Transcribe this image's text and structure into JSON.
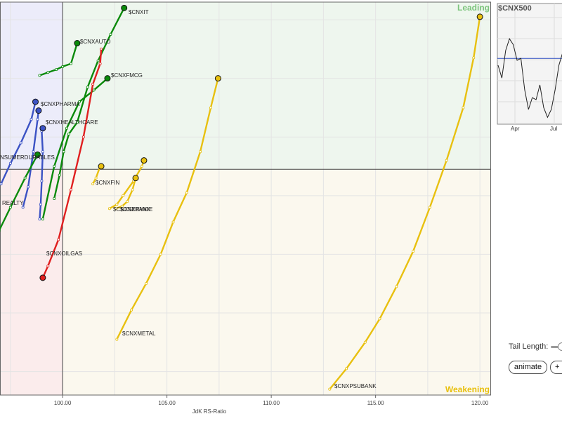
{
  "chart_data": {
    "type": "scatter",
    "title": "",
    "xlabel": "JdK RS-Ratio",
    "ylabel": "",
    "xlim": [
      97,
      120.5
    ],
    "ylim": [
      96.6,
      103.3
    ],
    "x_ticks": [
      100,
      105,
      110,
      115,
      120
    ],
    "x_tick_labels": [
      "100.00",
      "105.00",
      "110.00",
      "115.00",
      "120.00"
    ],
    "center": [
      100,
      100.45
    ],
    "grid": true,
    "quadrants": {
      "leading": "Leading",
      "weakening": "Weakening"
    },
    "colors": {
      "improving": "#1f8a1f",
      "lagging": "#e01f1f",
      "weakening": "#e8c00f",
      "leading_blue": "#4457c9"
    },
    "series": [
      {
        "name": "$CNXIT",
        "color": "#0a8a0a",
        "points": [
          [
            99.6,
            99.95
          ],
          [
            99.85,
            100.35
          ],
          [
            100.05,
            100.75
          ],
          [
            100.3,
            101.05
          ],
          [
            100.7,
            101.25
          ],
          [
            101.2,
            101.85
          ],
          [
            101.7,
            102.3
          ],
          [
            102.3,
            102.75
          ],
          [
            102.95,
            103.2
          ]
        ]
      },
      {
        "name": "$CNXAUTO",
        "color": "#0a8a0a",
        "points": [
          [
            98.9,
            102.05
          ],
          [
            99.3,
            102.1
          ],
          [
            99.7,
            102.15
          ],
          [
            100,
            102.2
          ],
          [
            100.4,
            102.25
          ],
          [
            100.7,
            102.6
          ]
        ]
      },
      {
        "name": "$CNXFMCG",
        "color": "#0a8a0a",
        "points": [
          [
            99.05,
            99.6
          ],
          [
            99.6,
            100.5
          ],
          [
            100.2,
            101.15
          ],
          [
            100.8,
            101.6
          ],
          [
            101.5,
            101.8
          ],
          [
            102.15,
            102.0
          ]
        ]
      },
      {
        "name": "$CNXOILGAS",
        "color": "#e01f1f",
        "points": [
          [
            101.85,
            102.5
          ],
          [
            101.8,
            102.25
          ],
          [
            101.45,
            101.9
          ],
          [
            101.0,
            101.0
          ],
          [
            100.4,
            100.1
          ],
          [
            99.8,
            99.25
          ],
          [
            99.3,
            98.8
          ],
          [
            99.05,
            98.6
          ]
        ]
      },
      {
        "name": "$CNXPHARMA",
        "color": "#3b52c4",
        "points": [
          [
            98.1,
            99.8
          ],
          [
            98.35,
            100.15
          ],
          [
            98.6,
            100.75
          ],
          [
            98.8,
            101.3
          ],
          [
            98.85,
            101.45
          ]
        ]
      },
      {
        "name": "$CNXHEALTHCARE",
        "color": "#3b52c4",
        "points": [
          [
            98.9,
            99.6
          ],
          [
            98.95,
            99.85
          ],
          [
            99.0,
            100.25
          ],
          [
            99.05,
            100.75
          ],
          [
            99.0,
            101.1
          ],
          [
            99.05,
            101.15
          ]
        ]
      },
      {
        "name": "$CNXCONSUMERDURABLES",
        "color": "#3b52c4",
        "points": [
          [
            97.05,
            100.2
          ],
          [
            97.5,
            100.55
          ],
          [
            98.0,
            100.9
          ],
          [
            98.5,
            101.3
          ],
          [
            98.7,
            101.6
          ]
        ]
      },
      {
        "name": "$CNXREALTY",
        "color": "#0a8a0a",
        "points": [
          [
            96.95,
            99.4
          ],
          [
            97.5,
            99.8
          ],
          [
            98.2,
            100.3
          ],
          [
            98.8,
            100.7
          ]
        ]
      },
      {
        "name": "$CNXFIN",
        "color": "#e8c00f",
        "points": [
          [
            101.45,
            100.2
          ],
          [
            101.6,
            100.3
          ],
          [
            101.8,
            100.5
          ],
          [
            101.85,
            100.5
          ]
        ]
      },
      {
        "name": "$CNXSERVICE",
        "color": "#e8c00f",
        "points": [
          [
            102.25,
            99.78
          ],
          [
            102.6,
            99.85
          ],
          [
            102.9,
            100.0
          ],
          [
            103.4,
            100.25
          ],
          [
            103.8,
            100.5
          ],
          [
            103.9,
            100.6
          ]
        ]
      },
      {
        "name": "$CNXBANK",
        "color": "#e8c00f",
        "points": [
          [
            102.55,
            99.78
          ],
          [
            102.85,
            99.82
          ],
          [
            103.1,
            99.9
          ],
          [
            103.35,
            100.1
          ],
          [
            103.5,
            100.3
          ]
        ]
      },
      {
        "name": "$CNXMETAL",
        "color": "#e8c00f",
        "points": [
          [
            102.6,
            97.55
          ],
          [
            103.3,
            98.05
          ],
          [
            104.0,
            98.5
          ],
          [
            104.7,
            99.0
          ],
          [
            105.3,
            99.55
          ],
          [
            105.95,
            100.05
          ],
          [
            106.6,
            100.75
          ],
          [
            107.1,
            101.5
          ],
          [
            107.45,
            102.0
          ]
        ]
      },
      {
        "name": "$CNXPSUBANK",
        "color": "#e8c00f",
        "points": [
          [
            112.8,
            96.7
          ],
          [
            113.6,
            97.05
          ],
          [
            114.5,
            97.5
          ],
          [
            115.2,
            97.9
          ],
          [
            116.0,
            98.45
          ],
          [
            116.8,
            99.05
          ],
          [
            117.6,
            99.8
          ],
          [
            118.4,
            100.6
          ],
          [
            119.2,
            101.5
          ],
          [
            119.7,
            102.35
          ],
          [
            120.0,
            103.05
          ]
        ]
      }
    ]
  },
  "labels": [
    {
      "id": "it",
      "text": "$CNXIT"
    },
    {
      "id": "auto",
      "text": "$CNXAUTO"
    },
    {
      "id": "fmcg",
      "text": "$CNXFMCG"
    },
    {
      "id": "pharma",
      "text": "$CNXPHARMA"
    },
    {
      "id": "health",
      "text": "$CNXHEALTHCARE"
    },
    {
      "id": "consumer",
      "text": "NSUMERDURABLES"
    },
    {
      "id": "realty",
      "text": "REALTY"
    },
    {
      "id": "fin",
      "text": "$CNXFIN"
    },
    {
      "id": "service",
      "text": "$CNXSERVICE"
    },
    {
      "id": "bank",
      "text": "$CNXBANK"
    },
    {
      "id": "oilgas",
      "text": "$CNXOILGAS"
    },
    {
      "id": "metal",
      "text": "$CNXMETAL"
    },
    {
      "id": "psubank",
      "text": "$CNXPSUBANK"
    }
  ],
  "mini_chart": {
    "title": "$CNX500",
    "x_labels": [
      "Apr",
      "Jul"
    ],
    "values": [
      0.55,
      0.42,
      0.7,
      0.82,
      0.76,
      0.6,
      0.62,
      0.3,
      0.1,
      0.22,
      0.2,
      0.35,
      0.12,
      0.02,
      0.1,
      0.3,
      0.55,
      0.68
    ],
    "reference": 0.62
  },
  "controls": {
    "tail_length_label": "Tail Length:",
    "animate_label": "animate",
    "plus_label": "+"
  }
}
